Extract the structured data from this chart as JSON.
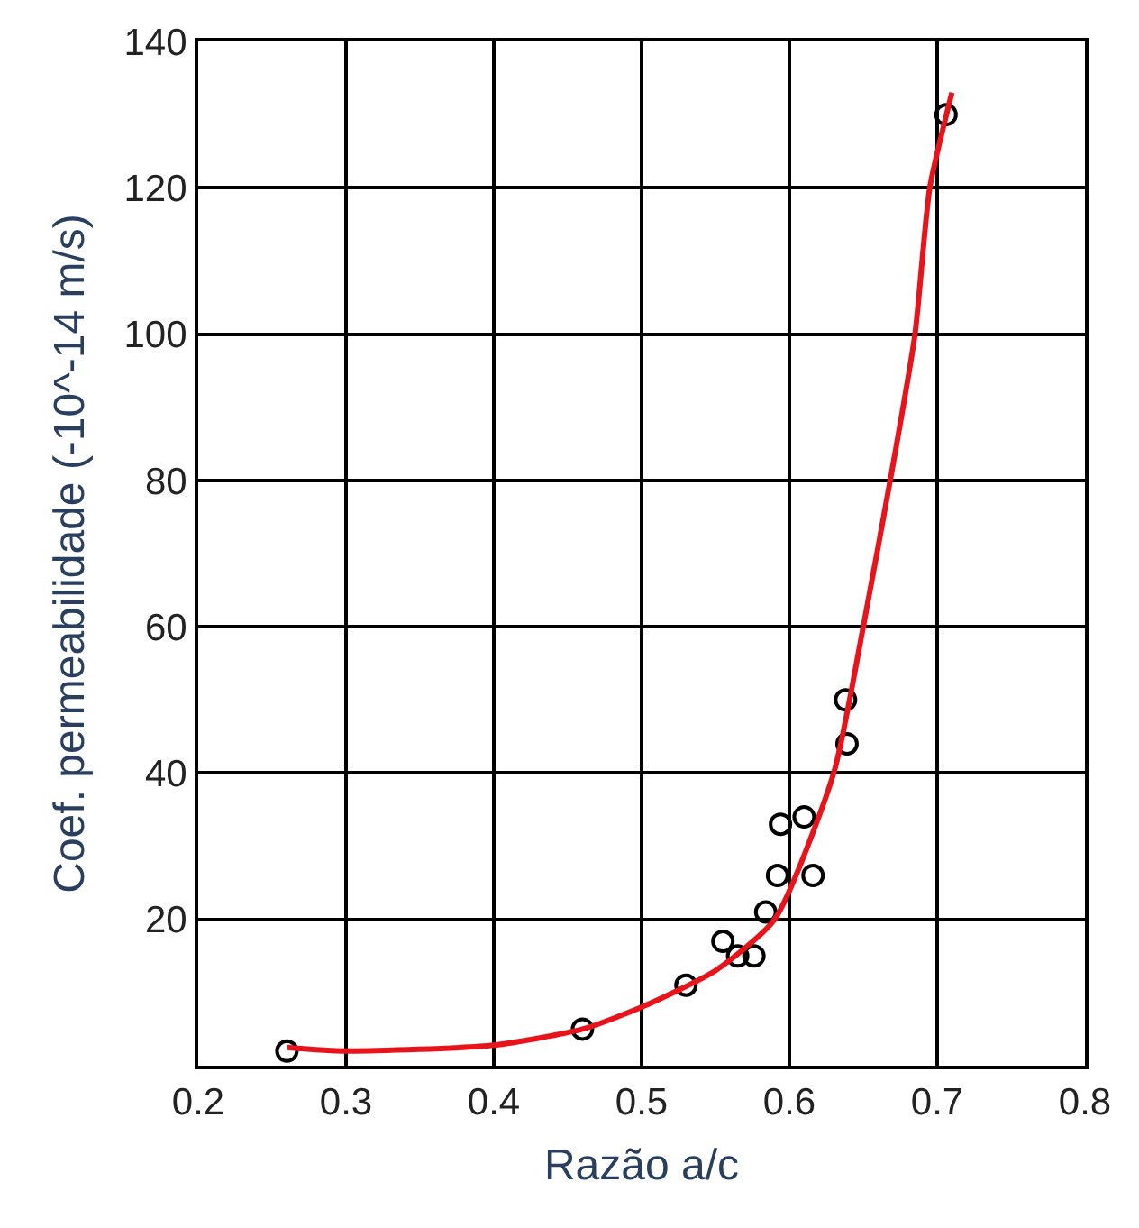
{
  "chart_data": {
    "type": "scatter",
    "xlabel": "Razão a/c",
    "ylabel": "Coef. permeabilidade (-10^-14 m/s)",
    "xlim": [
      0.2,
      0.8
    ],
    "xticks": [
      0.2,
      0.3,
      0.4,
      0.5,
      0.6,
      0.7,
      0.8
    ],
    "ylim": [
      0,
      140
    ],
    "yticks": [
      {
        "value": 0,
        "label": null
      },
      20,
      40,
      60,
      80,
      100,
      120,
      140
    ],
    "grid": true,
    "marker": "circle",
    "series": [
      {
        "color": "#000000",
        "x": [
          0.26,
          0.46,
          0.53,
          0.555,
          0.565,
          0.576,
          0.584,
          0.592,
          0.594,
          0.61,
          0.616,
          0.638,
          0.639,
          0.706
        ],
        "values": [
          2,
          5,
          11,
          17,
          15,
          15,
          21,
          26,
          33,
          34,
          26,
          50,
          44,
          130
        ]
      },
      {
        "type": "line",
        "color": "#e8141c",
        "marker": "none",
        "line_style": "solid",
        "x": [
          0.26,
          0.3,
          0.4,
          0.46,
          0.5,
          0.55,
          0.59,
          0.63,
          0.65,
          0.67,
          0.685,
          0.695,
          0.71
        ],
        "values": [
          2.5,
          2,
          2.8,
          5,
          8,
          13,
          20,
          40,
          60,
          82,
          100,
          120,
          133
        ]
      }
    ]
  }
}
